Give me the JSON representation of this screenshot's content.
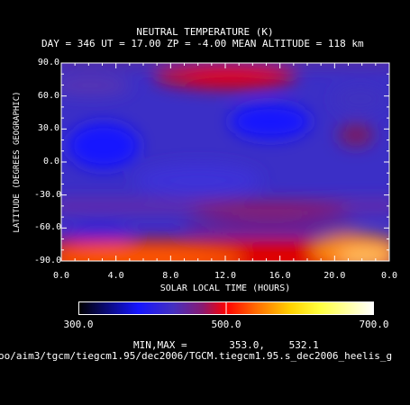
{
  "chart_data": {
    "type": "heatmap",
    "title": "NEUTRAL TEMPERATURE (K)",
    "subtitle": "DAY = 346   UT = 17.00   ZP =   -4.00   MEAN ALTITUDE = 118 km",
    "xlabel": "SOLAR LOCAL TIME (HOURS)",
    "ylabel": "LATITUDE (DEGREES GEOGRAPHIC)",
    "x_ticks": [
      "0.0",
      "4.0",
      "8.0",
      "12.0",
      "16.0",
      "20.0",
      "0.0"
    ],
    "y_ticks": [
      "90.0",
      "60.0",
      "30.0",
      "0.0",
      "-30.0",
      "-60.0",
      "-90.0"
    ],
    "xlim": [
      0,
      24
    ],
    "ylim": [
      -90,
      90
    ],
    "colorbar": {
      "min_label": "300.0",
      "mid_label": "500.0",
      "max_label": "700.0",
      "range": [
        300,
        700
      ]
    },
    "minmax_label": "MIN,MAX =",
    "min_value": "353.0,",
    "max_value": "532.1",
    "file_path": "oo/aim3/tgcm/tiegcm1.95/dec2006/TGCM.tiegcm1.95.s_dec2006_heelis_g"
  }
}
